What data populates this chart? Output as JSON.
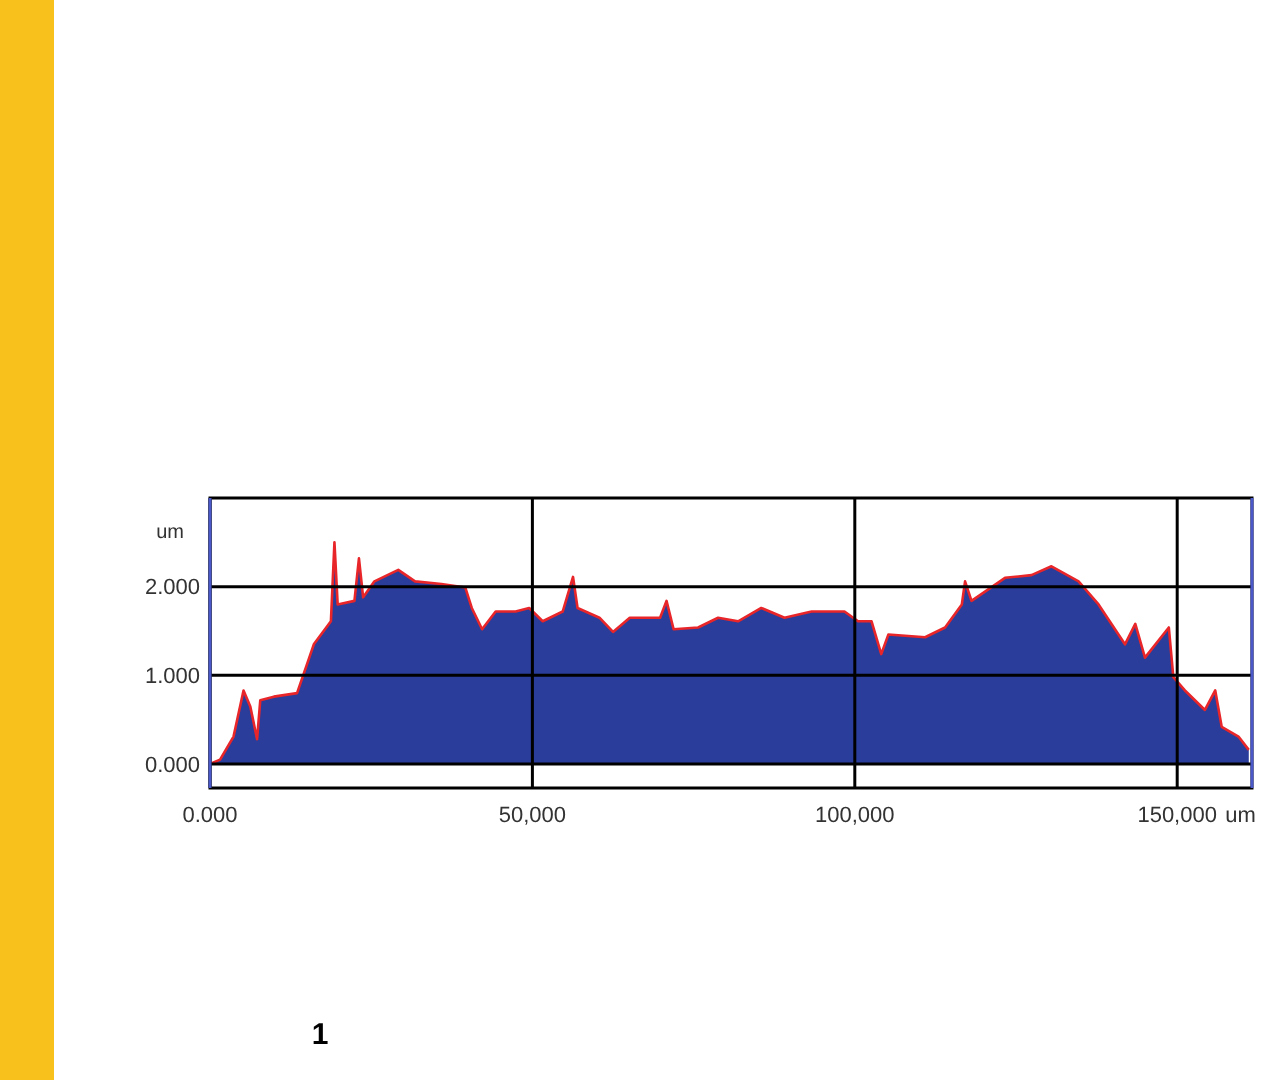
{
  "chart_data": {
    "type": "area",
    "xlabel": "um",
    "ylabel": "um",
    "annotations": [
      "1"
    ],
    "xlim": [
      0,
      161600
    ],
    "ylim": [
      -0.27,
      3.0
    ],
    "xticks": [
      {
        "value": 0,
        "label": "0.000"
      },
      {
        "value": 50000,
        "label": "50,000"
      },
      {
        "value": 100000,
        "label": "100,000"
      },
      {
        "value": 150000,
        "label": "150,000"
      }
    ],
    "yticks": [
      {
        "value": 0,
        "label": "0.000"
      },
      {
        "value": 1,
        "label": "1.000"
      },
      {
        "value": 2,
        "label": "2.000"
      }
    ],
    "grid": true,
    "x": [
      0,
      1560,
      3650,
      5200,
      6250,
      7300,
      7800,
      9900,
      13500,
      16100,
      18750,
      19300,
      19800,
      22400,
      23100,
      23750,
      25500,
      29200,
      31800,
      35900,
      39600,
      40600,
      42200,
      44300,
      47400,
      49500,
      51600,
      54700,
      56300,
      57000,
      60400,
      62500,
      65100,
      69800,
      70800,
      71900,
      75700,
      78800,
      81900,
      85500,
      89100,
      93300,
      98400,
      100500,
      102600,
      104100,
      105200,
      110900,
      114000,
      116600,
      117100,
      118100,
      123300,
      127400,
      130500,
      134700,
      137800,
      141900,
      143500,
      145000,
      148700,
      149400,
      151200,
      154300,
      155900,
      156900,
      159500,
      161100
    ],
    "series": [
      {
        "color": "#2a3d9a",
        "values": [
          0,
          0.05,
          0.31,
          0.83,
          0.65,
          0.28,
          0.72,
          0.76,
          0.8,
          1.35,
          1.61,
          2.5,
          1.8,
          1.84,
          2.32,
          1.88,
          2.06,
          2.19,
          2.06,
          2.03,
          1.99,
          1.76,
          1.52,
          1.72,
          1.72,
          1.76,
          1.61,
          1.72,
          2.11,
          1.76,
          1.65,
          1.49,
          1.65,
          1.65,
          1.84,
          1.52,
          1.54,
          1.65,
          1.61,
          1.76,
          1.65,
          1.72,
          1.72,
          1.61,
          1.61,
          1.24,
          1.46,
          1.43,
          1.54,
          1.8,
          2.06,
          1.84,
          2.1,
          2.13,
          2.23,
          2.06,
          1.8,
          1.35,
          1.58,
          1.2,
          1.54,
          0.98,
          0.83,
          0.61,
          0.83,
          0.42,
          0.31,
          0.16
        ]
      }
    ]
  }
}
